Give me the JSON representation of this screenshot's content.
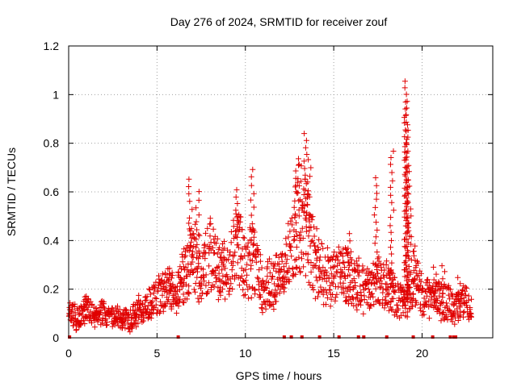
{
  "chart_data": {
    "type": "scatter",
    "title": "Day 276 of 2024, SRMTID for receiver zouf",
    "xlabel": "GPS time / hours",
    "ylabel": "SRMTID / TECUs",
    "xlim": [
      0,
      24
    ],
    "ylim": [
      0,
      1.2
    ],
    "xticks": [
      "0",
      "5",
      "10",
      "15",
      "20"
    ],
    "yticks": [
      "0",
      "0.2",
      "0.4",
      "0.6",
      "0.8",
      "1",
      "1.2"
    ],
    "grid": true,
    "legend": "none",
    "marker": "+",
    "color": "#e00000",
    "profile": [
      [
        0.0,
        0.1
      ],
      [
        0.5,
        0.08
      ],
      [
        1.0,
        0.12
      ],
      [
        1.5,
        0.09
      ],
      [
        2.0,
        0.1
      ],
      [
        2.5,
        0.09
      ],
      [
        3.0,
        0.08
      ],
      [
        3.5,
        0.07
      ],
      [
        4.0,
        0.12
      ],
      [
        4.5,
        0.14
      ],
      [
        5.0,
        0.17
      ],
      [
        5.5,
        0.2
      ],
      [
        6.0,
        0.18
      ],
      [
        6.5,
        0.25
      ],
      [
        7.0,
        0.33
      ],
      [
        7.5,
        0.27
      ],
      [
        8.0,
        0.35
      ],
      [
        8.5,
        0.28
      ],
      [
        9.0,
        0.27
      ],
      [
        9.5,
        0.38
      ],
      [
        10.0,
        0.3
      ],
      [
        10.5,
        0.32
      ],
      [
        11.0,
        0.2
      ],
      [
        11.5,
        0.22
      ],
      [
        12.0,
        0.25
      ],
      [
        12.5,
        0.35
      ],
      [
        13.0,
        0.5
      ],
      [
        13.5,
        0.45
      ],
      [
        14.0,
        0.3
      ],
      [
        14.5,
        0.26
      ],
      [
        15.0,
        0.25
      ],
      [
        15.5,
        0.27
      ],
      [
        16.0,
        0.25
      ],
      [
        16.5,
        0.21
      ],
      [
        17.0,
        0.2
      ],
      [
        17.5,
        0.24
      ],
      [
        18.0,
        0.22
      ],
      [
        18.5,
        0.17
      ],
      [
        19.0,
        0.14
      ],
      [
        19.5,
        0.25
      ],
      [
        20.0,
        0.18
      ],
      [
        20.5,
        0.15
      ],
      [
        21.0,
        0.16
      ],
      [
        21.5,
        0.14
      ],
      [
        22.0,
        0.12
      ],
      [
        22.5,
        0.16
      ],
      [
        22.8,
        0.1
      ]
    ],
    "peaks": [
      {
        "x": 6.9,
        "y": 0.65
      },
      {
        "x": 7.3,
        "y": 0.6
      },
      {
        "x": 9.5,
        "y": 0.61
      },
      {
        "x": 10.4,
        "y": 0.69
      },
      {
        "x": 12.8,
        "y": 0.69
      },
      {
        "x": 13.0,
        "y": 0.65
      },
      {
        "x": 13.4,
        "y": 0.84
      },
      {
        "x": 13.6,
        "y": 0.73
      },
      {
        "x": 15.9,
        "y": 0.43
      },
      {
        "x": 17.4,
        "y": 0.66
      },
      {
        "x": 18.3,
        "y": 0.77
      },
      {
        "x": 19.1,
        "y": 1.06
      },
      {
        "x": 19.1,
        "y": 0.97
      },
      {
        "x": 19.1,
        "y": 0.92
      },
      {
        "x": 19.2,
        "y": 0.8
      },
      {
        "x": 19.3,
        "y": 0.68
      },
      {
        "x": 19.6,
        "y": 0.38
      },
      {
        "x": 20.7,
        "y": 0.29
      },
      {
        "x": 21.2,
        "y": 0.3
      },
      {
        "x": 22.1,
        "y": 0.25
      }
    ],
    "zero_points": [
      0.05,
      6.2,
      12.2,
      12.6,
      13.2,
      14.2,
      15.3,
      16.4,
      16.7,
      18.0,
      19.5,
      20.6,
      21.6,
      21.8,
      21.9
    ]
  }
}
